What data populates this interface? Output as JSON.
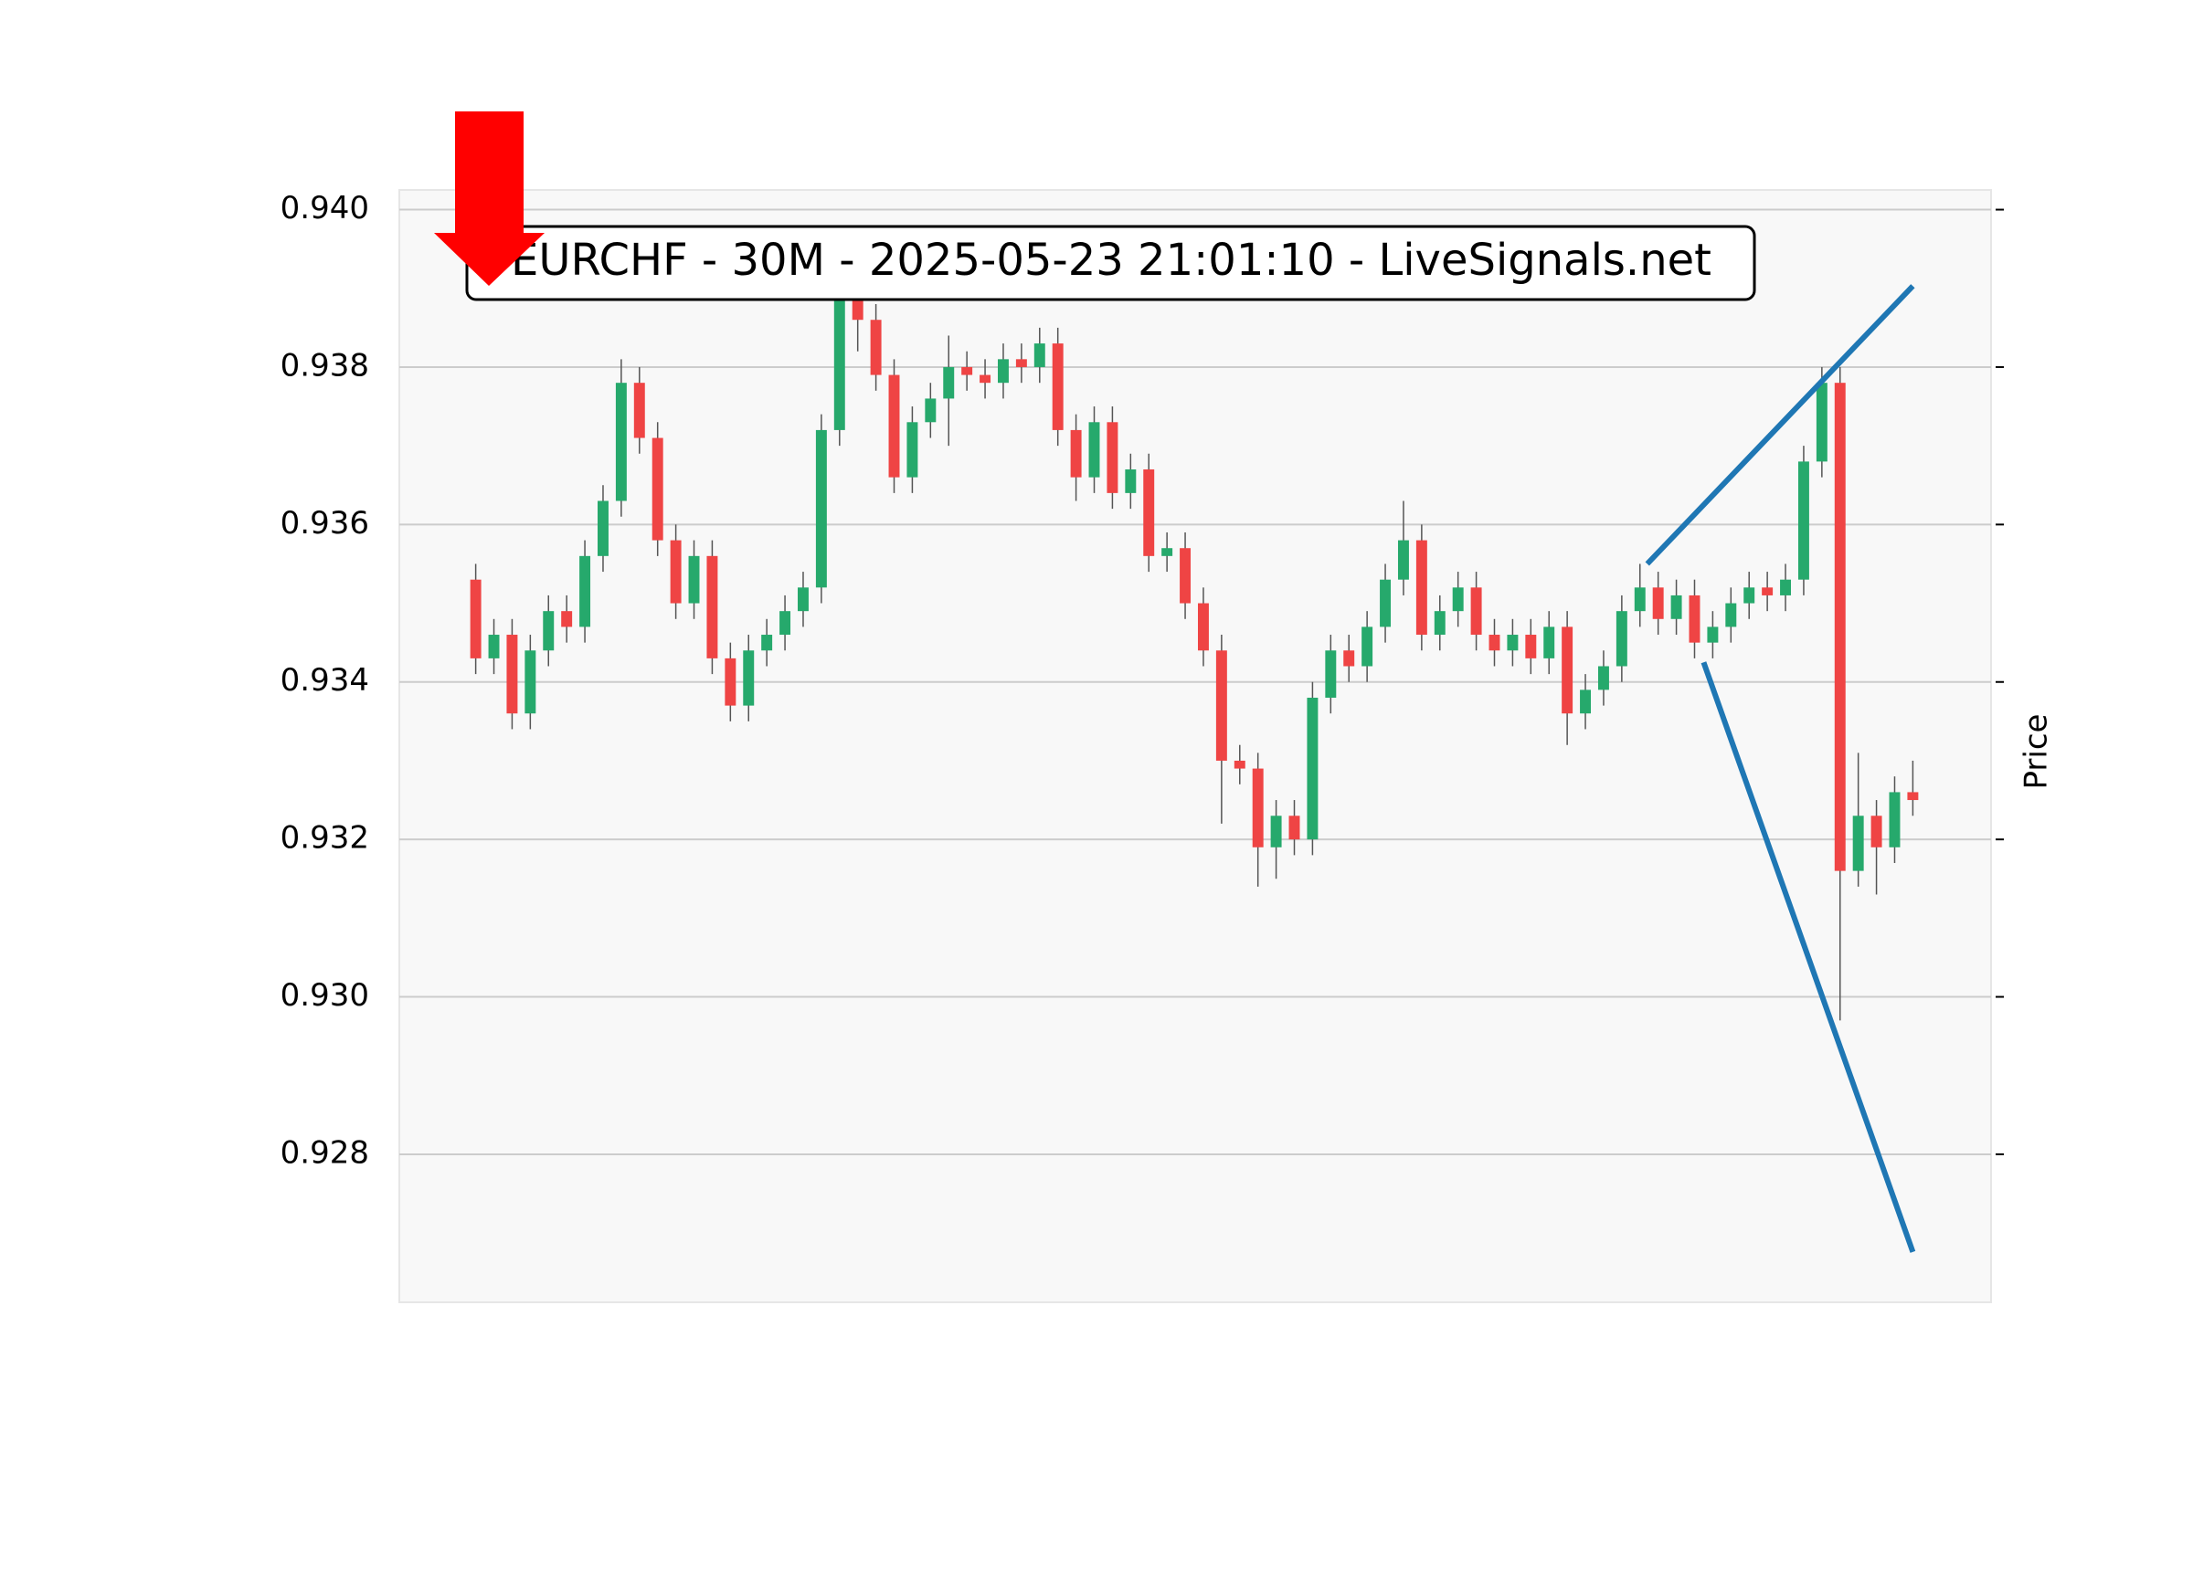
{
  "chart_data": {
    "type": "candlestick",
    "title": "EURCHF - 30M - 2025-05-23 21:01:10 - LiveSignals.net",
    "y_label": "Price",
    "up_color": "#26a96c",
    "down_color": "#ef4444",
    "grid": true,
    "xlim": [
      -4.2,
      83.3
    ],
    "ylim": [
      0.92612,
      0.94025
    ],
    "yticks": [
      {
        "value": 0.928,
        "label": "0.928"
      },
      {
        "value": 0.93,
        "label": "0.930"
      },
      {
        "value": 0.932,
        "label": "0.932"
      },
      {
        "value": 0.934,
        "label": "0.934"
      },
      {
        "value": 0.936,
        "label": "0.936"
      },
      {
        "value": 0.938,
        "label": "0.938"
      },
      {
        "value": 0.94,
        "label": "0.940"
      }
    ],
    "open": [
      0.9353,
      0.9343,
      0.9346,
      0.9336,
      0.9344,
      0.9349,
      0.9347,
      0.9356,
      0.9363,
      0.9378,
      0.9371,
      0.9358,
      0.935,
      0.9356,
      0.9343,
      0.9337,
      0.9344,
      0.9346,
      0.9349,
      0.9352,
      0.9372,
      0.9389,
      0.9386,
      0.9379,
      0.9366,
      0.9373,
      0.9376,
      0.938,
      0.9379,
      0.9378,
      0.9381,
      0.938,
      0.9383,
      0.9372,
      0.9366,
      0.9373,
      0.9364,
      0.9367,
      0.9356,
      0.9357,
      0.935,
      0.9344,
      0.933,
      0.9329,
      0.9319,
      0.9323,
      0.932,
      0.9338,
      0.9344,
      0.9342,
      0.9347,
      0.9353,
      0.9358,
      0.9346,
      0.9349,
      0.9352,
      0.9346,
      0.9344,
      0.9346,
      0.9343,
      0.9347,
      0.9336,
      0.9339,
      0.9342,
      0.9349,
      0.9352,
      0.9348,
      0.9351,
      0.9345,
      0.9347,
      0.935,
      0.9352,
      0.9351,
      0.9353,
      0.9368,
      0.9378,
      0.9316,
      0.9323,
      0.9319,
      0.9326
    ],
    "high": [
      0.9355,
      0.9348,
      0.9348,
      0.9346,
      0.9351,
      0.9351,
      0.9358,
      0.9365,
      0.9381,
      0.938,
      0.9373,
      0.936,
      0.9358,
      0.9358,
      0.9345,
      0.9346,
      0.9348,
      0.9351,
      0.9354,
      0.9374,
      0.9392,
      0.9391,
      0.9388,
      0.9381,
      0.9375,
      0.9378,
      0.9384,
      0.9382,
      0.9381,
      0.9383,
      0.9383,
      0.9385,
      0.9385,
      0.9374,
      0.9375,
      0.9375,
      0.9369,
      0.9369,
      0.9359,
      0.9359,
      0.9352,
      0.9346,
      0.9332,
      0.9331,
      0.9325,
      0.9325,
      0.934,
      0.9346,
      0.9346,
      0.9349,
      0.9355,
      0.9363,
      0.936,
      0.9351,
      0.9354,
      0.9354,
      0.9348,
      0.9348,
      0.9348,
      0.9349,
      0.9349,
      0.9341,
      0.9344,
      0.9351,
      0.9355,
      0.9354,
      0.9353,
      0.9353,
      0.9349,
      0.9352,
      0.9354,
      0.9354,
      0.9355,
      0.937,
      0.938,
      0.938,
      0.9331,
      0.9325,
      0.9328,
      0.933
    ],
    "low": [
      0.9341,
      0.9341,
      0.9334,
      0.9334,
      0.9342,
      0.9345,
      0.9345,
      0.9354,
      0.9361,
      0.9369,
      0.9356,
      0.9348,
      0.9348,
      0.9341,
      0.9335,
      0.9335,
      0.9342,
      0.9344,
      0.9347,
      0.935,
      0.937,
      0.9382,
      0.9377,
      0.9364,
      0.9364,
      0.9371,
      0.937,
      0.9377,
      0.9376,
      0.9376,
      0.9378,
      0.9378,
      0.937,
      0.9363,
      0.9364,
      0.9362,
      0.9362,
      0.9354,
      0.9354,
      0.9348,
      0.9342,
      0.9322,
      0.9327,
      0.9314,
      0.9315,
      0.9318,
      0.9318,
      0.9336,
      0.934,
      0.934,
      0.9345,
      0.9351,
      0.9344,
      0.9344,
      0.9347,
      0.9344,
      0.9342,
      0.9342,
      0.9341,
      0.9341,
      0.9332,
      0.9334,
      0.9337,
      0.934,
      0.9347,
      0.9346,
      0.9346,
      0.9343,
      0.9343,
      0.9345,
      0.9348,
      0.9349,
      0.9349,
      0.9351,
      0.9366,
      0.9297,
      0.9314,
      0.9313,
      0.9317,
      0.9323
    ],
    "close": [
      0.9343,
      0.9346,
      0.9336,
      0.9344,
      0.9349,
      0.9347,
      0.9356,
      0.9363,
      0.9378,
      0.9371,
      0.9358,
      0.935,
      0.9356,
      0.9343,
      0.9337,
      0.9344,
      0.9346,
      0.9349,
      0.9352,
      0.9372,
      0.9389,
      0.9386,
      0.9379,
      0.9366,
      0.9373,
      0.9376,
      0.938,
      0.9379,
      0.9378,
      0.9381,
      0.938,
      0.9383,
      0.9372,
      0.9366,
      0.9373,
      0.9364,
      0.9367,
      0.9356,
      0.9357,
      0.935,
      0.9344,
      0.933,
      0.9329,
      0.9319,
      0.9323,
      0.932,
      0.9338,
      0.9344,
      0.9342,
      0.9347,
      0.9353,
      0.9358,
      0.9346,
      0.9349,
      0.9352,
      0.9346,
      0.9344,
      0.9346,
      0.9343,
      0.9347,
      0.9336,
      0.9339,
      0.9342,
      0.9349,
      0.9352,
      0.9348,
      0.9351,
      0.9345,
      0.9347,
      0.935,
      0.9352,
      0.9351,
      0.9353,
      0.9368,
      0.9378,
      0.9316,
      0.9323,
      0.9319,
      0.9326,
      0.9325
    ],
    "lines": [
      {
        "color": "#1f77b4",
        "x": [
          64.4,
          79
        ],
        "y": [
          0.9355,
          0.93903
        ]
      },
      {
        "color": "#1f77b4",
        "x": [
          67.5,
          79
        ],
        "y": [
          0.93425,
          0.92676
        ]
      }
    ]
  }
}
